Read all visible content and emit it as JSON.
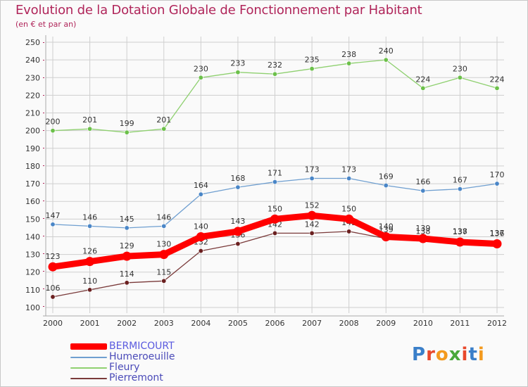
{
  "title": "Evolution de la Dotation Globale de Fonctionnement par Habitant",
  "subtitle": "(en € et par an)",
  "logo": {
    "text": "Proxiti",
    "letter_colors": [
      "#3a7fc9",
      "#e8482c",
      "#f39a1e",
      "#4aa83a",
      "#e8482c",
      "#3a7fc9",
      "#f39a1e"
    ]
  },
  "colors": {
    "title": "#b0255a",
    "axis_text": "#333333",
    "grid": "#cfcfcf",
    "axis": "#b0255a"
  },
  "chart_data": {
    "type": "line",
    "x": [
      "2000",
      "2001",
      "2002",
      "2003",
      "2004",
      "2005",
      "2006",
      "2007",
      "2008",
      "2009",
      "2010",
      "2011",
      "2012"
    ],
    "ylim": [
      100,
      250
    ],
    "yticks": [
      100,
      110,
      120,
      130,
      140,
      150,
      160,
      170,
      180,
      190,
      200,
      210,
      220,
      230,
      240,
      250
    ],
    "grid": true,
    "legend_position": "bottom-left",
    "series": [
      {
        "name": "BERMICOURT",
        "color": "#ff0000",
        "marker_color": "#ff0000",
        "emphasis": true,
        "values": [
          123,
          126,
          129,
          130,
          140,
          143,
          150,
          152,
          150,
          140,
          139,
          137,
          136
        ],
        "labels": [
          "123",
          "126",
          "129",
          "130",
          "140",
          "143",
          "150",
          "152",
          "150",
          "140",
          "139",
          "137",
          "136"
        ]
      },
      {
        "name": "Humeroeuille",
        "color": "#6f9fd0",
        "marker_color": "#4a86c7",
        "values": [
          147,
          146,
          145,
          146,
          164,
          168,
          171,
          173,
          173,
          169,
          166,
          167,
          170
        ],
        "labels": [
          "147",
          "146",
          "145",
          "146",
          "164",
          "168",
          "171",
          "173",
          "173",
          "169",
          "166",
          "167",
          "170"
        ]
      },
      {
        "name": "Fleury",
        "color": "#8fd070",
        "marker_color": "#6cc04a",
        "values": [
          200,
          201,
          199,
          201,
          230,
          233,
          232,
          235,
          238,
          240,
          224,
          230,
          224
        ],
        "labels": [
          "200",
          "201",
          "199",
          "201",
          "230",
          "233",
          "232",
          "235",
          "238",
          "240",
          "224",
          "230",
          "224"
        ]
      },
      {
        "name": "Pierremont",
        "color": "#7a3a3a",
        "marker_color": "#6b2020",
        "values": [
          106,
          110,
          114,
          115,
          132,
          136,
          142,
          142,
          143,
          139,
          138,
          138,
          137
        ],
        "labels": [
          "106",
          "110",
          "114",
          "115",
          "132",
          "136",
          "142",
          "142",
          "143",
          "139",
          "138",
          "138",
          "137"
        ]
      }
    ]
  }
}
